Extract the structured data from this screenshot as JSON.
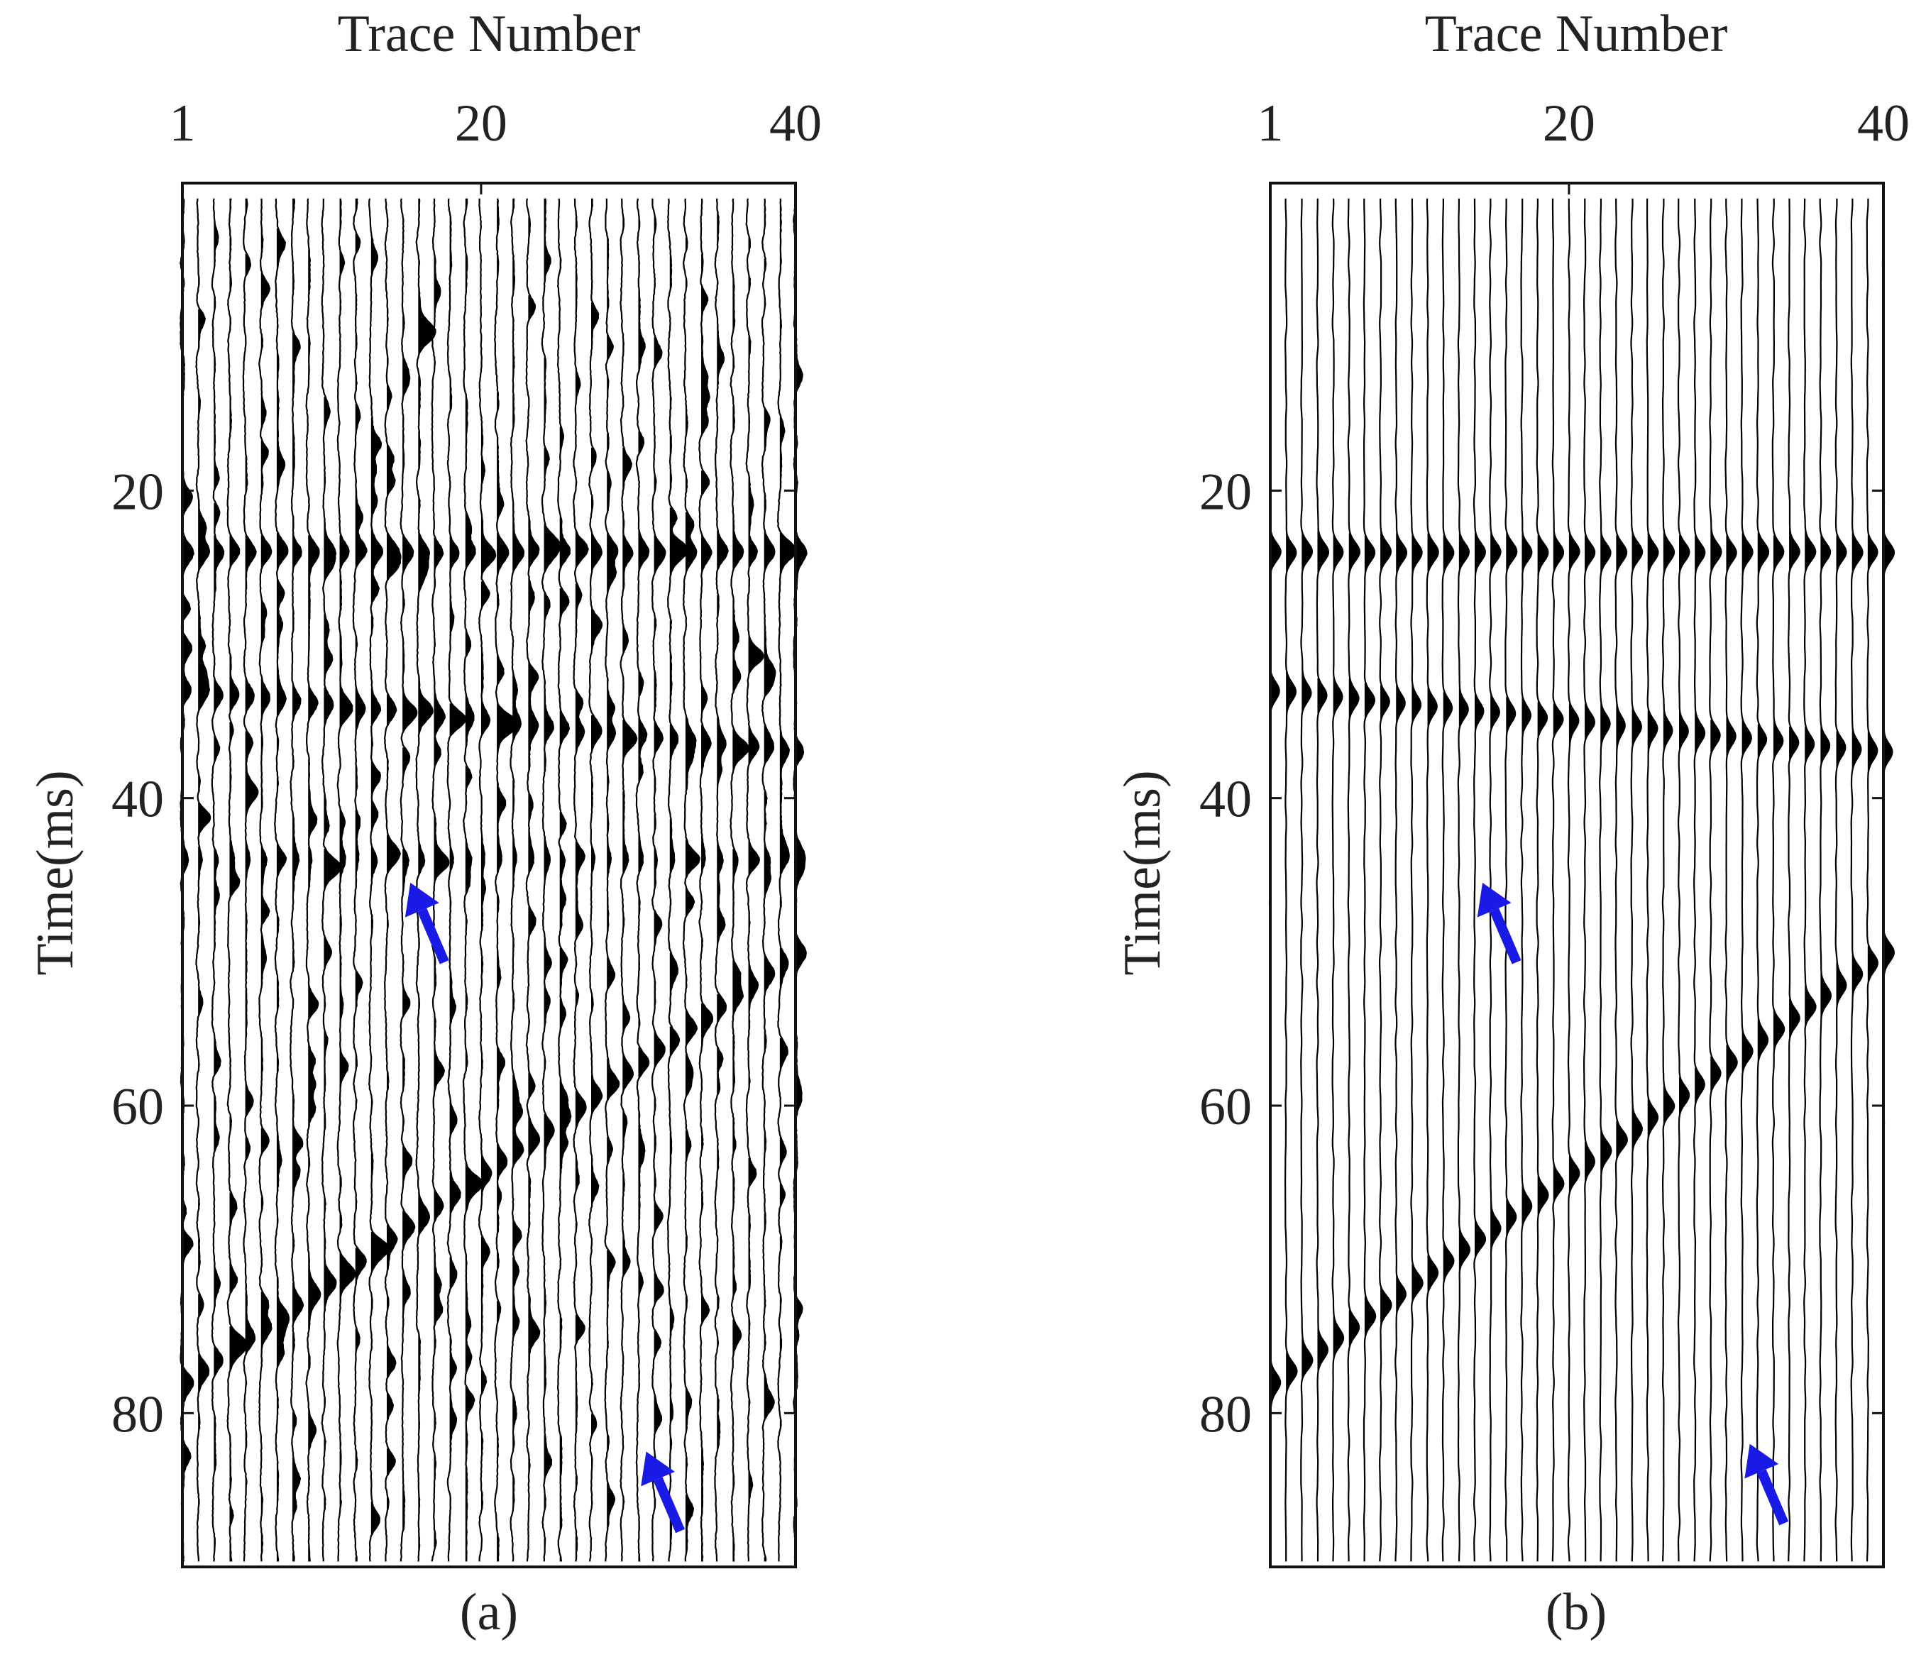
{
  "chart_data": [
    {
      "type": "seismic-wiggle",
      "panel_label": "(a)",
      "xlabel": "Trace Number",
      "ylabel": "Time(ms)",
      "xticks": [
        "1",
        "20",
        "40"
      ],
      "yticks": [
        "20",
        "40",
        "60",
        "80"
      ],
      "ytick_values": [
        20,
        40,
        60,
        80
      ],
      "xlim": [
        1,
        40
      ],
      "ylim": [
        0,
        90
      ],
      "noise": true,
      "noise_level": 0.75,
      "seed": 7,
      "events": [
        {
          "name": "",
          "t_first": 24,
          "t_last": 24,
          "amp": 1.0
        },
        {
          "name": "",
          "t_first": 33,
          "t_last": 37,
          "amp": 0.9
        },
        {
          "name": "",
          "t_first": 78,
          "t_last": 50,
          "amp": 1.0
        },
        {
          "name": "",
          "t_first": 44,
          "t_last": 44,
          "amp": 0.45
        }
      ],
      "arrows": [
        {
          "trace": 15.5,
          "time": 45.5
        },
        {
          "trace": 30.5,
          "time": 82.5
        }
      ],
      "arrow_color": "#1a1ae6"
    },
    {
      "type": "seismic-wiggle",
      "panel_label": "(b)",
      "xlabel": "Trace Number",
      "ylabel": "Time(ms)",
      "xticks": [
        "1",
        "20",
        "40"
      ],
      "yticks": [
        "20",
        "40",
        "60",
        "80"
      ],
      "ytick_values": [
        20,
        40,
        60,
        80
      ],
      "xlim": [
        1,
        40
      ],
      "ylim": [
        0,
        90
      ],
      "noise": false,
      "noise_level": 0.0,
      "seed": 11,
      "events": [
        {
          "name": "",
          "t_first": 24,
          "t_last": 24,
          "amp": 1.0
        },
        {
          "name": "",
          "t_first": 33,
          "t_last": 37,
          "amp": 0.9
        },
        {
          "name": "",
          "t_first": 78,
          "t_last": 50,
          "amp": 1.0
        }
      ],
      "arrows": [
        {
          "trace": 14.5,
          "time": 45.5
        },
        {
          "trace": 31.5,
          "time": 82.0
        }
      ],
      "arrow_color": "#1a1ae6"
    }
  ]
}
